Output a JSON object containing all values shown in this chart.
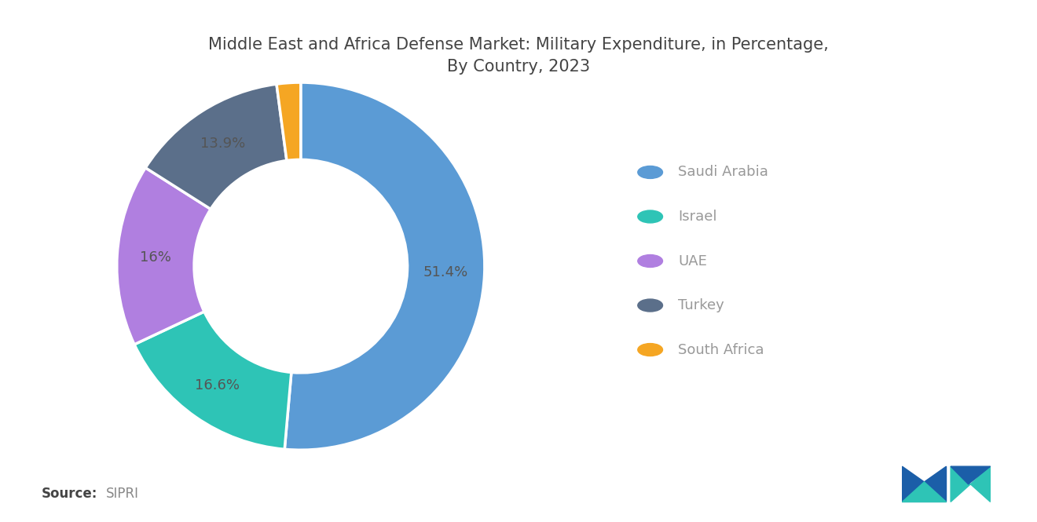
{
  "title": "Middle East and Africa Defense Market: Military Expenditure, in Percentage,\nBy Country, 2023",
  "title_fontsize": 15,
  "title_color": "#444444",
  "labels": [
    "Saudi Arabia",
    "Israel",
    "UAE",
    "Turkey",
    "South Africa"
  ],
  "values": [
    51.4,
    16.6,
    16.0,
    13.9,
    2.1
  ],
  "colors": [
    "#5B9BD5",
    "#2EC4B6",
    "#B07FE0",
    "#5B6F8A",
    "#F5A623"
  ],
  "pct_labels": [
    "51.4%",
    "16.6%",
    "16%",
    "13.9%",
    ""
  ],
  "source_label": "Source:",
  "source_value": "SIPRI",
  "background_color": "#FFFFFF",
  "legend_text_color": "#999999",
  "legend_fontsize": 13,
  "pct_fontsize": 13,
  "pct_color": "#555555"
}
